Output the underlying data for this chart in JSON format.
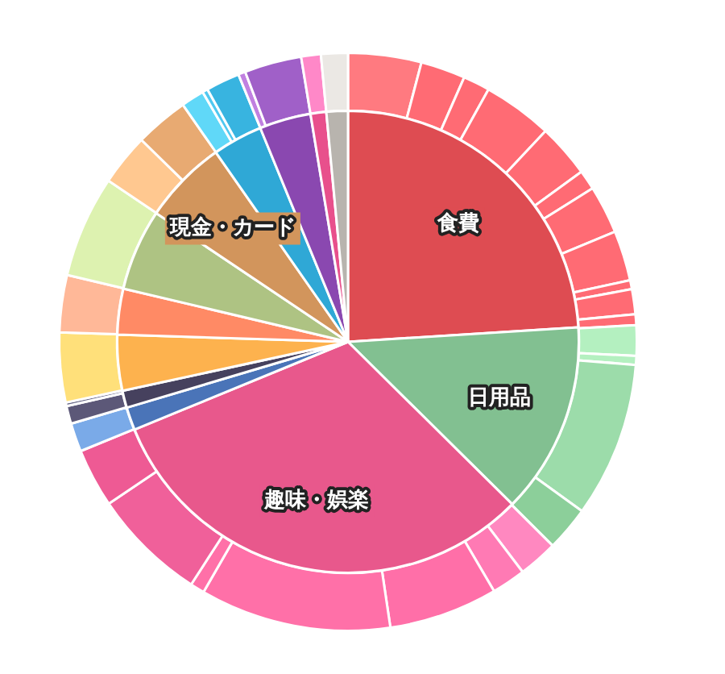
{
  "chart_data": [
    {
      "type": "pie",
      "legend": false,
      "categories": [
        "食費",
        "日用品",
        "趣味・娯楽",
        null,
        null,
        null,
        null,
        null,
        "現金・カード",
        null,
        null,
        null,
        null
      ],
      "values": [
        24.0,
        13.4,
        31.4,
        1.6,
        1.2,
        3.9,
        3.2,
        5.7,
        5.9,
        3.5,
        3.6,
        1.1,
        1.5
      ],
      "colors": [
        "#de4c52",
        "#82c091",
        "#e8588c",
        "#4a74b8",
        "#46415e",
        "#fdb24e",
        "#ff8a65",
        "#aec383",
        "#d2955c",
        "#2fa8d6",
        "#8a48b0",
        "#e8508c",
        "#b8b4ae"
      ]
    },
    {
      "type": "donut",
      "legend": false,
      "categories": [
        null,
        null,
        null,
        null,
        null,
        null,
        null,
        null,
        null,
        null,
        null,
        null,
        null,
        null,
        null,
        null,
        null,
        null,
        null,
        null,
        null,
        null,
        null,
        null,
        null,
        null,
        null,
        null,
        null,
        null,
        null,
        null,
        null,
        null,
        null,
        null,
        null
      ],
      "values": [
        4.1,
        2.5,
        1.5,
        3.9,
        3.0,
        1.1,
        2.7,
        2.8,
        0.5,
        1.4,
        0.6,
        1.7,
        0.5,
        8.7,
        2.5,
        2.2,
        1.9,
        6.1,
        10.7,
        0.8,
        6.4,
        3.3,
        1.6,
        1.0,
        0.2,
        3.9,
        3.2,
        5.7,
        2.9,
        3.0,
        1.3,
        0.3,
        1.9,
        0.4,
        3.2,
        1.1,
        1.5
      ],
      "colors": [
        "#ff7a80",
        "#ff6b74",
        "#ff6b74",
        "#ff6b74",
        "#ff6b74",
        "#ff6b74",
        "#ff6b74",
        "#ff6b74",
        "#ff6b74",
        "#ff6b74",
        "#ff6b74",
        "#b4f0c0",
        "#b4f0c0",
        "#9cdcaa",
        "#8ccf9a",
        "#ff88c0",
        "#ff7ab4",
        "#ff6fa8",
        "#ff70a8",
        "#ff70a8",
        "#f0609a",
        "#ee5a94",
        "#7aaae8",
        "#5c5878",
        "#6a6a8a",
        "#ffe07a",
        "#ffb898",
        "#ddf2b0",
        "#ffc890",
        "#e8aa72",
        "#60d8f8",
        "#50c8f0",
        "#38b4e0",
        "#c080e0",
        "#a060c8",
        "#ff88c8",
        "#ebe8e4"
      ]
    }
  ]
}
